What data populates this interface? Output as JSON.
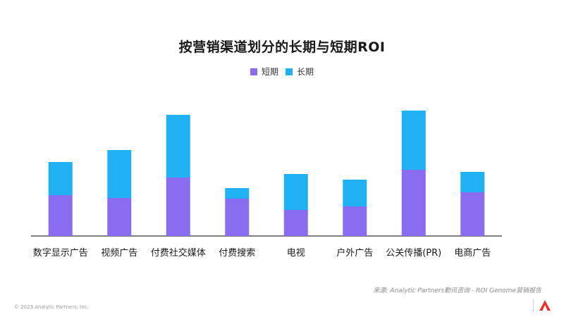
{
  "colors": {
    "short": "#8a6cf0",
    "long": "#1fb1f2",
    "axis": "#333333",
    "brand": "#e3352c"
  },
  "chart_data": {
    "type": "bar",
    "stacked": true,
    "title": "按营销渠道划分的长期与短期ROI",
    "categories": [
      "数字显示广告",
      "视频广告",
      "付费社交媒体",
      "付费搜索",
      "电视",
      "户外广告",
      "公关传播(PR)",
      "电商广告"
    ],
    "series": [
      {
        "name": "短期",
        "values": [
          58,
          54,
          83,
          53,
          37,
          42,
          94,
          62
        ]
      },
      {
        "name": "长期",
        "values": [
          47,
          68,
          89,
          15,
          51,
          38,
          84,
          29
        ]
      }
    ],
    "legend_position": "top-center",
    "grid": false,
    "ylim": [
      0,
      190
    ]
  },
  "footer": {
    "source": "来源: Analytic Partners勤讯咨询 - ROI Genome营销报告",
    "copyright": "© 2023 Analytic Partners, Inc."
  },
  "icons": {
    "logo": "analytic-partners-logo-icon"
  }
}
